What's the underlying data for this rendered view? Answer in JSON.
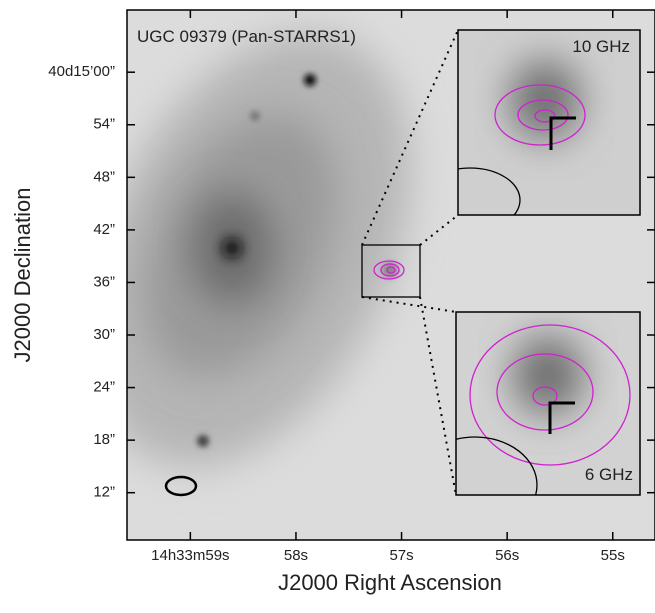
{
  "chart_data": {
    "type": "image",
    "title": "UGC 09379 (Pan-STARRS1)",
    "x_label": "J2000 Right Ascension",
    "y_label": "J2000 Declination",
    "xlim": [
      59.6,
      54.6
    ],
    "ylim": [
      6.6,
      67.1
    ],
    "xticks": [
      {
        "value": 59,
        "label": "14h33m59s"
      },
      {
        "value": 58,
        "label": "58s"
      },
      {
        "value": 57,
        "label": "57s"
      },
      {
        "value": 56,
        "label": "56s"
      },
      {
        "value": 55,
        "label": "55s"
      }
    ],
    "yticks": [
      {
        "value": 60,
        "label": "40d15’00”"
      },
      {
        "value": 54,
        "label": "54”"
      },
      {
        "value": 48,
        "label": "48”"
      },
      {
        "value": 42,
        "label": "42”"
      },
      {
        "value": 36,
        "label": "36”"
      },
      {
        "value": 30,
        "label": "30”"
      },
      {
        "value": 24,
        "label": "24”"
      },
      {
        "value": 18,
        "label": "18”"
      },
      {
        "value": 12,
        "label": "12”"
      }
    ],
    "insets": [
      {
        "label": "10 GHz"
      },
      {
        "label": "6 GHz"
      }
    ]
  }
}
